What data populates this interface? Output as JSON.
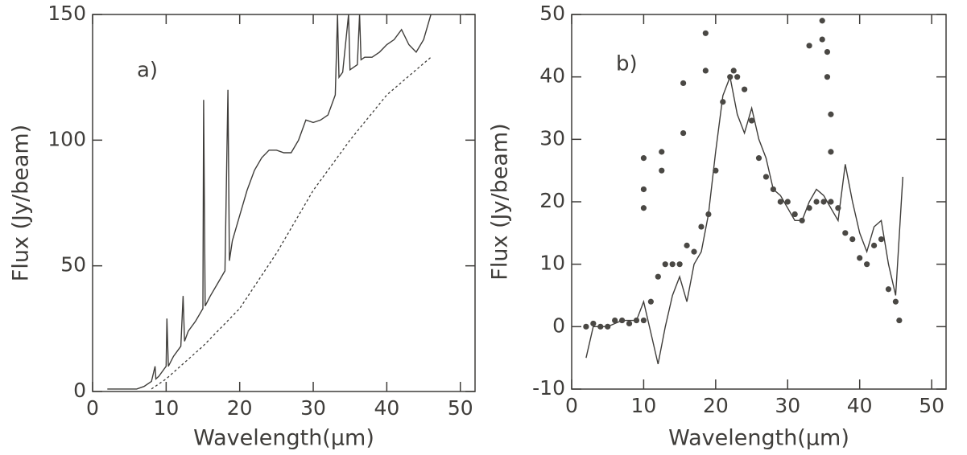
{
  "chart_data": [
    {
      "type": "line",
      "annotation": "a)",
      "xlabel": "Wavelength(μm)",
      "ylabel": "Flux (Jy/beam)",
      "xlim": [
        0,
        52
      ],
      "ylim": [
        0,
        150
      ],
      "xticks": [
        0,
        10,
        20,
        30,
        40,
        50
      ],
      "yticks": [
        0,
        50,
        100,
        150
      ],
      "series": [
        {
          "color": "#3f3d3a",
          "dash": false,
          "x": [
            2,
            4,
            6,
            7,
            8,
            8.5,
            8.6,
            9,
            10,
            10.1,
            10.3,
            11,
            12,
            12.3,
            12.5,
            13,
            14,
            15,
            15.1,
            15.3,
            16,
            17,
            18,
            18.4,
            18.6,
            19,
            20,
            21,
            22,
            23,
            24,
            25,
            26,
            27,
            28,
            29,
            30,
            31,
            32,
            33,
            33.3,
            33.5,
            34,
            34.8,
            35,
            36,
            36.3,
            36.5,
            37,
            38,
            39,
            40,
            41,
            42,
            43,
            44,
            45,
            46
          ],
          "values": [
            1,
            1,
            1,
            2,
            4,
            10,
            5,
            6,
            10,
            29,
            10,
            14,
            18,
            38,
            20,
            24,
            28,
            33,
            116,
            34,
            38,
            43,
            48,
            120,
            52,
            60,
            70,
            80,
            88,
            93,
            96,
            96,
            95,
            95,
            100,
            108,
            107,
            108,
            110,
            118,
            150,
            125,
            127,
            150,
            128,
            130,
            150,
            132,
            133,
            133,
            135,
            138,
            140,
            144,
            138,
            135,
            140,
            150
          ]
        },
        {
          "color": "#3f3d3a",
          "dash": true,
          "x": [
            8,
            10,
            15,
            20,
            25,
            30,
            35,
            40,
            44,
            46
          ],
          "values": [
            1,
            5,
            18,
            33,
            55,
            80,
            100,
            118,
            128,
            133
          ]
        }
      ]
    },
    {
      "type": "line",
      "annotation": "b)",
      "xlabel": "Wavelength(μm)",
      "ylabel": "Flux (Jy/beam)",
      "xlim": [
        0,
        52
      ],
      "ylim": [
        -10,
        50
      ],
      "xticks": [
        0,
        10,
        20,
        30,
        40,
        50
      ],
      "yticks": [
        -10,
        0,
        10,
        20,
        30,
        40,
        50
      ],
      "series": [
        {
          "color": "#3f3d3a",
          "mode": "line",
          "x": [
            2,
            3,
            5,
            7,
            9,
            10,
            11,
            12,
            13,
            14,
            15,
            16,
            17,
            18,
            19,
            20,
            21,
            22,
            23,
            24,
            25,
            26,
            27,
            28,
            29,
            30,
            31,
            32,
            33,
            34,
            35,
            36,
            37,
            38,
            39,
            40,
            41,
            42,
            43,
            44,
            45,
            46
          ],
          "values": [
            -5,
            0,
            0,
            1,
            1,
            4,
            -1,
            -6,
            0,
            5,
            8,
            4,
            10,
            12,
            18,
            28,
            37,
            40,
            34,
            31,
            35,
            30,
            27,
            22,
            21,
            19,
            17,
            17,
            20,
            22,
            21,
            19,
            17,
            26,
            20,
            15,
            12,
            16,
            17,
            10,
            5,
            24
          ]
        },
        {
          "color": "#4a4844",
          "mode": "markers",
          "x": [
            2,
            3,
            4,
            5,
            6,
            7,
            8,
            9,
            10,
            11,
            12,
            13,
            14,
            15,
            16,
            17,
            18,
            19,
            20,
            21,
            22,
            22.5,
            23,
            24,
            25,
            26,
            27,
            28,
            29,
            30,
            31,
            32,
            33,
            34,
            35,
            36,
            37,
            38,
            39,
            40,
            41,
            42,
            43,
            44,
            45,
            45.5,
            10,
            10,
            10,
            12.5,
            12.5,
            15.5,
            15.5,
            18.6,
            18.6,
            33,
            34.8,
            34.8,
            35.5,
            35.5,
            36,
            36
          ],
          "values": [
            0,
            0.5,
            0,
            0,
            1,
            1,
            0.5,
            1,
            1,
            4,
            8,
            10,
            10,
            10,
            13,
            12,
            16,
            18,
            25,
            36,
            40,
            41,
            40,
            38,
            33,
            27,
            24,
            22,
            20,
            20,
            18,
            17,
            19,
            20,
            20,
            20,
            19,
            15,
            14,
            11,
            10,
            13,
            14,
            6,
            4,
            1,
            27,
            22,
            19,
            28,
            25,
            39,
            31,
            47,
            41,
            45,
            49,
            46,
            44,
            40,
            28,
            34
          ]
        }
      ]
    }
  ]
}
